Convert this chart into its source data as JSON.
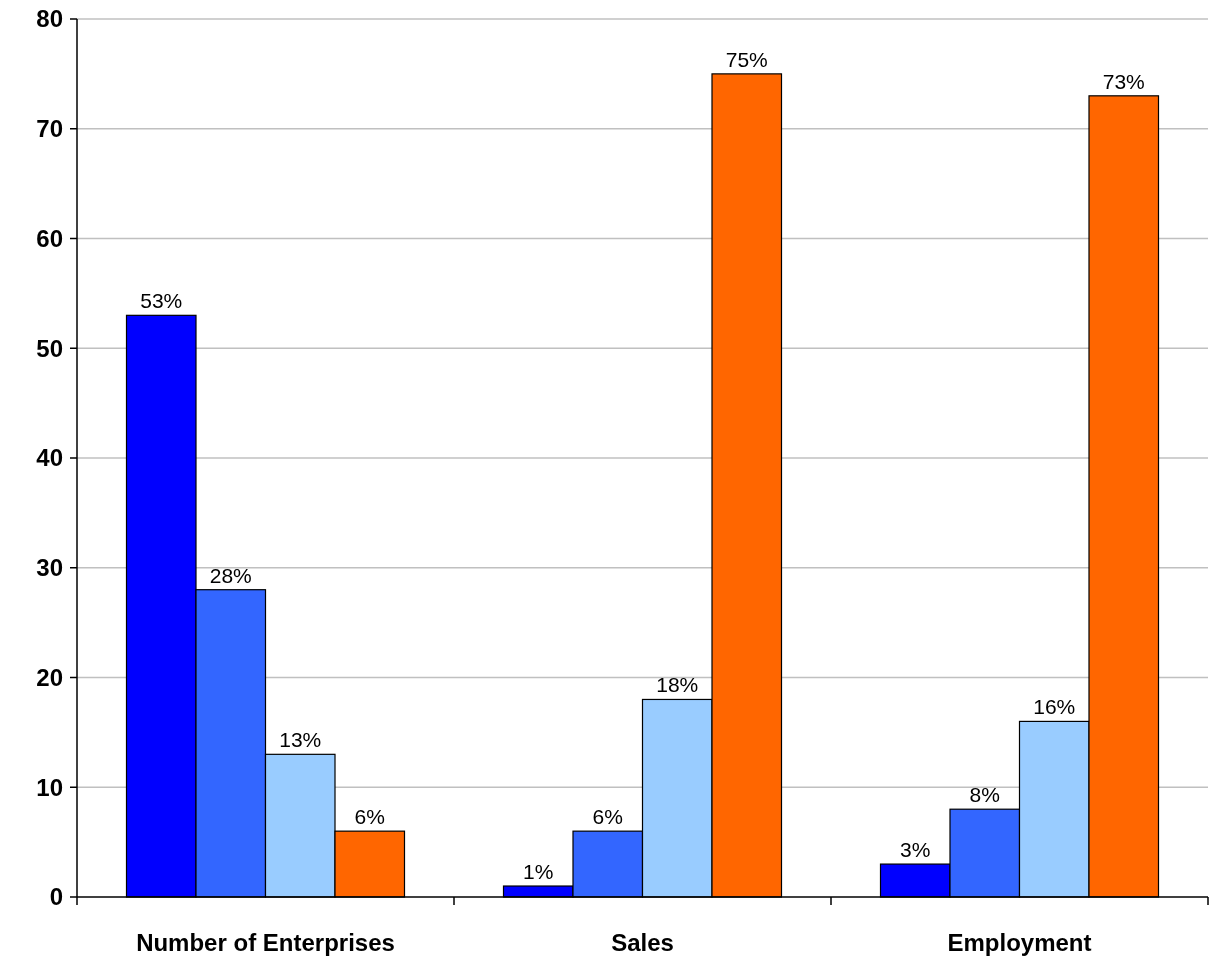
{
  "chart_data": {
    "type": "bar",
    "categories": [
      "Number of Enterprises",
      "Sales",
      "Employment"
    ],
    "series": [
      {
        "color": "#0000ff",
        "values": [
          53,
          1,
          3
        ],
        "value_labels": [
          "53%",
          "1%",
          "3%"
        ]
      },
      {
        "color": "#3366ff",
        "values": [
          28,
          6,
          8
        ],
        "value_labels": [
          "28%",
          "6%",
          "8%"
        ]
      },
      {
        "color": "#99ccff",
        "values": [
          13,
          18,
          16
        ],
        "value_labels": [
          "13%",
          "18%",
          "16%"
        ]
      },
      {
        "color": "#ff6600",
        "values": [
          6,
          75,
          73
        ],
        "value_labels": [
          "6%",
          "75%",
          "73%"
        ]
      }
    ],
    "ylim": [
      0,
      80
    ],
    "yticks": [
      0,
      10,
      20,
      30,
      40,
      50,
      60,
      70,
      80
    ],
    "grid": "y"
  }
}
